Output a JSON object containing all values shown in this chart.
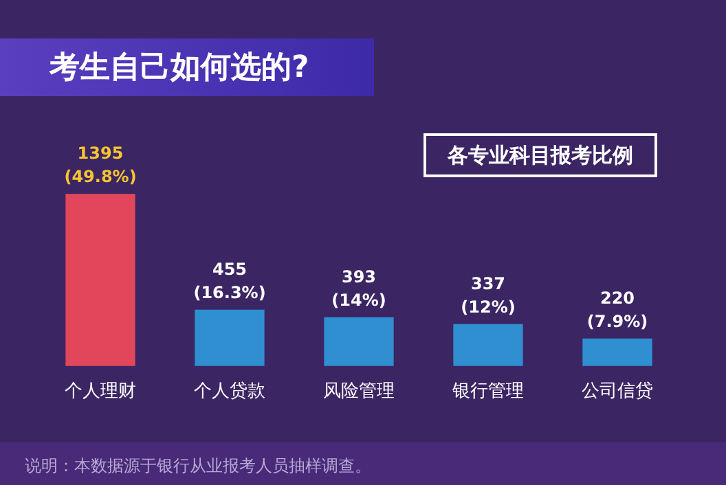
{
  "chart_data": {
    "type": "bar",
    "title": "考生自己如何选的?",
    "subtitle": "各专业科目报考比例",
    "categories": [
      "个人理财",
      "个人贷款",
      "风险管理",
      "银行管理",
      "公司信贷"
    ],
    "values": [
      1395,
      455,
      393,
      337,
      220
    ],
    "colors": [
      "#e2465a",
      "#2f8fd0",
      "#2f8fd0",
      "#2f8fd0",
      "#2f8fd0"
    ],
    "value_labels": [
      "1395\n(49.8%)",
      "455\n(16.3%)",
      "393\n(14%)",
      "337\n(12%)",
      "220\n(7.9%)"
    ],
    "annotations": [
      "说明：本数据源于银行从业报考人员抽样调查。"
    ]
  }
}
